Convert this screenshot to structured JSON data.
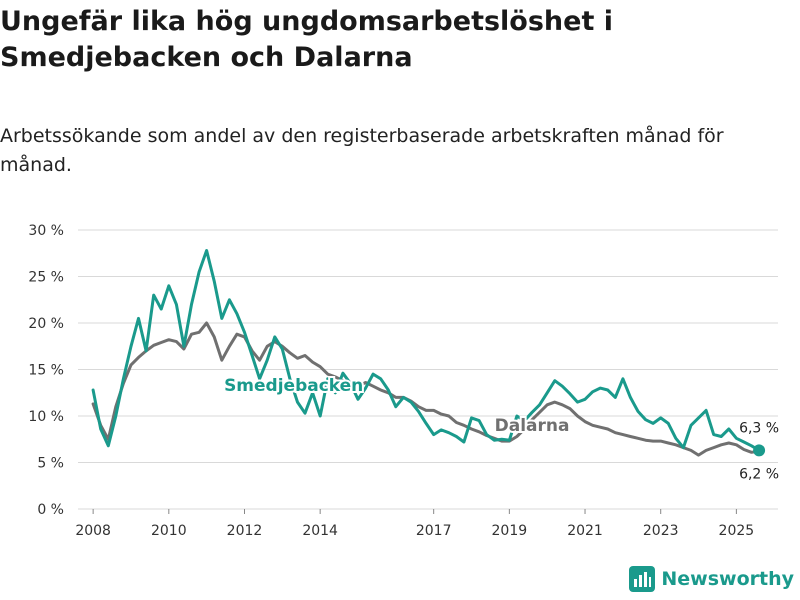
{
  "header": {
    "title": "Ungefär lika hög ungdomsarbetslöshet i Smedjebacken och Dalarna",
    "subtitle": "Arbetssökande som andel av den registerbaserade arbetskraften månad för månad."
  },
  "brand": {
    "name": "Newsworthy",
    "color": "#1a9a8c"
  },
  "chart_data": {
    "type": "line",
    "title": "Ungefär lika hög ungdomsarbetslöshet i Smedjebacken och Dalarna",
    "subtitle": "Arbetssökande som andel av den registerbaserade arbetskraften månad för månad.",
    "xlabel": "",
    "ylabel": "",
    "ylim": [
      0,
      30
    ],
    "xlim": [
      2007.6,
      2026.1
    ],
    "y_ticks": [
      {
        "value": 0,
        "label": "0 %"
      },
      {
        "value": 5,
        "label": "5 %"
      },
      {
        "value": 10,
        "label": "10 %"
      },
      {
        "value": 15,
        "label": "15 %"
      },
      {
        "value": 20,
        "label": "20 %"
      },
      {
        "value": 25,
        "label": "25 %"
      },
      {
        "value": 30,
        "label": "30 %"
      }
    ],
    "x_ticks": [
      {
        "value": 2008,
        "label": "2008"
      },
      {
        "value": 2010,
        "label": "2010"
      },
      {
        "value": 2012,
        "label": "2012"
      },
      {
        "value": 2014,
        "label": "2014"
      },
      {
        "value": 2017,
        "label": "2017"
      },
      {
        "value": 2019,
        "label": "2019"
      },
      {
        "value": 2021,
        "label": "2021"
      },
      {
        "value": 2023,
        "label": "2023"
      },
      {
        "value": 2025,
        "label": "2025"
      }
    ],
    "grid": true,
    "series": [
      {
        "name": "Dalarna",
        "label": "Dalarna",
        "color": "#707070",
        "label_at": {
          "x": 2019.6,
          "y": 8.4
        },
        "x": [
          2008.0,
          2008.2,
          2008.4,
          2008.6,
          2008.8,
          2009.0,
          2009.2,
          2009.4,
          2009.6,
          2009.8,
          2010.0,
          2010.2,
          2010.4,
          2010.6,
          2010.8,
          2011.0,
          2011.2,
          2011.4,
          2011.6,
          2011.8,
          2012.0,
          2012.2,
          2012.4,
          2012.6,
          2012.8,
          2013.0,
          2013.2,
          2013.4,
          2013.6,
          2013.8,
          2014.0,
          2014.2,
          2014.4,
          2014.6,
          2014.8,
          2015.0,
          2015.2,
          2015.4,
          2015.6,
          2015.8,
          2016.0,
          2016.2,
          2016.4,
          2016.6,
          2016.8,
          2017.0,
          2017.2,
          2017.4,
          2017.6,
          2017.8,
          2018.0,
          2018.2,
          2018.4,
          2018.6,
          2018.8,
          2019.0,
          2019.2,
          2019.4,
          2019.6,
          2019.8,
          2020.0,
          2020.2,
          2020.4,
          2020.6,
          2020.8,
          2021.0,
          2021.2,
          2021.4,
          2021.6,
          2021.8,
          2022.0,
          2022.2,
          2022.4,
          2022.6,
          2022.8,
          2023.0,
          2023.2,
          2023.4,
          2023.6,
          2023.8,
          2024.0,
          2024.2,
          2024.4,
          2024.6,
          2024.8,
          2025.0,
          2025.2,
          2025.4,
          2025.6
        ],
        "values": [
          11.3,
          9.0,
          7.5,
          11.0,
          13.5,
          15.5,
          16.3,
          17.0,
          17.6,
          17.9,
          18.2,
          18.0,
          17.2,
          18.8,
          19.0,
          20.0,
          18.5,
          16.0,
          17.5,
          18.8,
          18.5,
          17.0,
          16.0,
          17.5,
          18.0,
          17.5,
          16.8,
          16.2,
          16.5,
          15.8,
          15.3,
          14.5,
          14.2,
          13.8,
          13.5,
          13.2,
          13.6,
          13.2,
          12.8,
          12.5,
          12.0,
          12.0,
          11.6,
          11.0,
          10.6,
          10.6,
          10.2,
          10.0,
          9.3,
          9.0,
          8.6,
          8.3,
          7.9,
          7.6,
          7.3,
          7.3,
          7.8,
          8.6,
          9.6,
          10.4,
          11.2,
          11.5,
          11.2,
          10.8,
          10.0,
          9.4,
          9.0,
          8.8,
          8.6,
          8.2,
          8.0,
          7.8,
          7.6,
          7.4,
          7.3,
          7.3,
          7.1,
          6.9,
          6.6,
          6.3,
          5.8,
          6.3,
          6.6,
          6.9,
          7.1,
          6.9,
          6.4,
          6.1,
          6.2
        ]
      },
      {
        "name": "Smedjebacken",
        "label": "Smedjebacken",
        "color": "#1a9a8c",
        "label_at": {
          "x": 2013.3,
          "y": 12.7
        },
        "x": [
          2008.0,
          2008.2,
          2008.4,
          2008.6,
          2008.8,
          2009.0,
          2009.2,
          2009.4,
          2009.6,
          2009.8,
          2010.0,
          2010.2,
          2010.4,
          2010.6,
          2010.8,
          2011.0,
          2011.2,
          2011.4,
          2011.6,
          2011.8,
          2012.0,
          2012.2,
          2012.4,
          2012.6,
          2012.8,
          2013.0,
          2013.2,
          2013.4,
          2013.6,
          2013.8,
          2014.0,
          2014.2,
          2014.4,
          2014.6,
          2014.8,
          2015.0,
          2015.2,
          2015.4,
          2015.6,
          2015.8,
          2016.0,
          2016.2,
          2016.4,
          2016.6,
          2016.8,
          2017.0,
          2017.2,
          2017.4,
          2017.6,
          2017.8,
          2018.0,
          2018.2,
          2018.4,
          2018.6,
          2018.8,
          2019.0,
          2019.2,
          2019.4,
          2019.6,
          2019.8,
          2020.0,
          2020.2,
          2020.4,
          2020.6,
          2020.8,
          2021.0,
          2021.2,
          2021.4,
          2021.6,
          2021.8,
          2022.0,
          2022.2,
          2022.4,
          2022.6,
          2022.8,
          2023.0,
          2023.2,
          2023.4,
          2023.6,
          2023.8,
          2024.0,
          2024.2,
          2024.4,
          2024.6,
          2024.8,
          2025.0,
          2025.2,
          2025.4,
          2025.6
        ],
        "values": [
          12.8,
          8.6,
          6.8,
          10.0,
          14.0,
          17.5,
          20.5,
          17.0,
          23.0,
          21.5,
          24.0,
          22.0,
          17.5,
          22.0,
          25.5,
          27.8,
          24.5,
          20.5,
          22.5,
          21.0,
          19.0,
          16.5,
          14.0,
          16.0,
          18.5,
          17.2,
          14.0,
          11.5,
          10.3,
          12.5,
          10.0,
          14.0,
          12.5,
          14.6,
          13.5,
          11.8,
          13.0,
          14.5,
          14.0,
          12.8,
          11.0,
          12.0,
          11.5,
          10.5,
          9.2,
          8.0,
          8.5,
          8.2,
          7.8,
          7.2,
          9.8,
          9.5,
          8.0,
          7.4,
          7.5,
          7.4,
          10.0,
          9.5,
          10.4,
          11.2,
          12.5,
          13.8,
          13.2,
          12.4,
          11.5,
          11.8,
          12.6,
          13.0,
          12.8,
          12.0,
          14.0,
          12.0,
          10.5,
          9.6,
          9.2,
          9.8,
          9.2,
          7.6,
          6.6,
          9.0,
          9.8,
          10.6,
          8.0,
          7.8,
          8.6,
          7.6,
          7.2,
          6.8,
          6.3
        ]
      }
    ],
    "annotations": [
      {
        "series": "Smedjebacken",
        "label": "6,3 %",
        "value": 6.3,
        "x": 2025.6
      },
      {
        "series": "Dalarna",
        "label": "6,2 %",
        "value": 6.2,
        "x": 2025.6
      }
    ]
  }
}
